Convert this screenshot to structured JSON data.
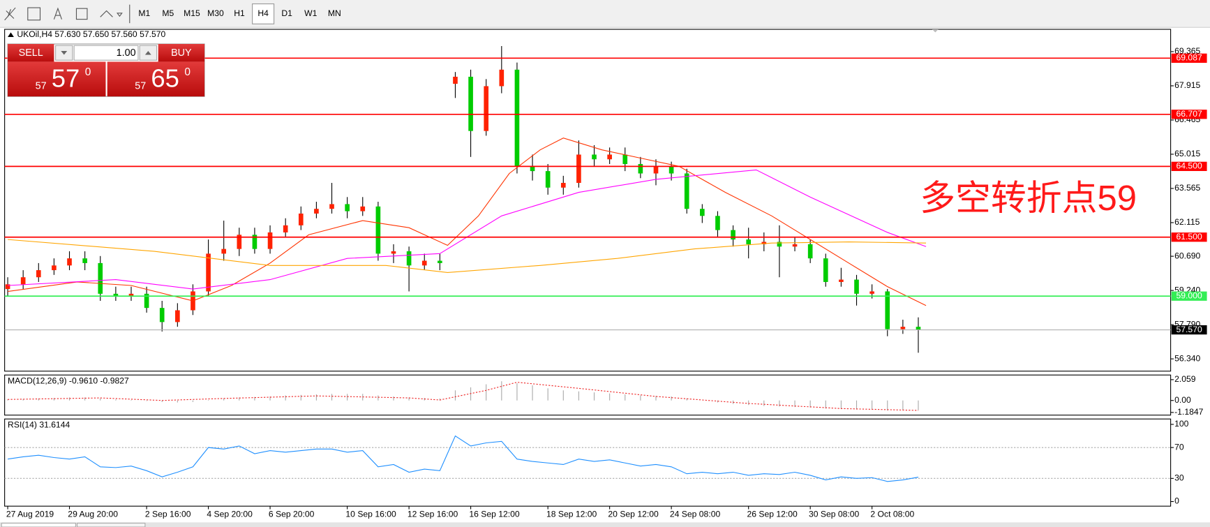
{
  "toolbar": {
    "timeframes": [
      "M1",
      "M5",
      "M15",
      "M30",
      "H1",
      "H4",
      "D1",
      "W1",
      "MN"
    ],
    "active": "H4"
  },
  "trade_panel": {
    "sell_label": "SELL",
    "buy_label": "BUY",
    "lots": "1.00",
    "sell_price": {
      "big_figure": "57",
      "pips": "57",
      "fraction": "0"
    },
    "buy_price": {
      "big_figure": "57",
      "pips": "65",
      "fraction": "0"
    }
  },
  "chart_data": [
    {
      "type": "candlestick",
      "title": "UKOil,H4 57.630 57.650 57.560 57.570",
      "annotation": "多空转折点59",
      "categories": [
        "27 Aug 2019",
        null,
        null,
        null,
        "29 Aug 20:00",
        null,
        null,
        null,
        null,
        "2 Sep 16:00",
        null,
        null,
        null,
        "4 Sep 20:00",
        null,
        null,
        null,
        "6 Sep 20:00",
        null,
        null,
        null,
        null,
        "10 Sep 16:00",
        null,
        null,
        null,
        "12 Sep 16:00",
        null,
        null,
        null,
        "16 Sep 12:00",
        null,
        null,
        null,
        null,
        "18 Sep 12:00",
        null,
        null,
        null,
        "20 Sep 12:00",
        null,
        null,
        null,
        "24 Sep 08:00",
        null,
        null,
        null,
        null,
        "26 Sep 12:00",
        null,
        null,
        null,
        "30 Sep 08:00",
        null,
        null,
        null,
        "2 Oct 08:00",
        null,
        null,
        null
      ],
      "open": [
        59.3,
        59.5,
        59.8,
        60.1,
        60.3,
        60.6,
        60.4,
        59.1,
        59.0,
        59.1,
        58.5,
        57.9,
        58.4,
        59.2,
        60.8,
        61.0,
        61.6,
        61.0,
        61.7,
        62.0,
        62.5,
        62.7,
        62.9,
        62.6,
        62.8,
        60.8,
        60.9,
        60.3,
        60.5,
        68.0,
        68.3,
        66.0,
        67.9,
        68.6,
        64.5,
        64.3,
        63.6,
        63.8,
        65.0,
        64.8,
        65.0,
        64.6,
        64.2,
        64.5,
        64.2,
        62.7,
        62.4,
        61.8,
        61.4,
        61.2,
        61.3,
        61.1,
        61.2,
        60.6,
        59.6,
        59.7,
        59.1,
        59.2,
        57.6,
        57.7
      ],
      "high": [
        59.8,
        60.1,
        60.4,
        60.6,
        60.9,
        60.9,
        60.7,
        59.4,
        59.4,
        59.4,
        58.8,
        58.7,
        59.5,
        61.4,
        62.2,
        61.9,
        61.9,
        62.0,
        62.3,
        62.8,
        63.0,
        63.8,
        63.2,
        63.2,
        63.0,
        61.2,
        61.1,
        60.8,
        60.8,
        68.5,
        68.6,
        68.2,
        69.6,
        68.9,
        65.0,
        64.6,
        64.1,
        65.6,
        65.4,
        65.3,
        65.3,
        64.9,
        64.8,
        64.7,
        64.4,
        62.9,
        62.6,
        62.0,
        61.9,
        61.7,
        62.0,
        61.5,
        61.4,
        60.8,
        60.2,
        59.9,
        59.5,
        59.3,
        58.0,
        58.1
      ],
      "low": [
        59.0,
        59.3,
        59.6,
        59.9,
        60.1,
        60.1,
        58.8,
        58.8,
        58.8,
        58.3,
        57.5,
        57.7,
        58.2,
        59.0,
        60.5,
        60.7,
        60.8,
        60.8,
        61.5,
        61.8,
        62.3,
        62.5,
        62.3,
        62.4,
        60.5,
        60.4,
        59.2,
        60.1,
        60.1,
        67.4,
        64.9,
        65.8,
        67.6,
        64.2,
        63.9,
        63.3,
        63.3,
        63.6,
        64.5,
        64.6,
        64.3,
        64.0,
        63.7,
        63.9,
        62.5,
        62.1,
        61.5,
        61.1,
        60.6,
        60.9,
        59.8,
        60.9,
        60.4,
        59.4,
        59.4,
        58.6,
        58.9,
        57.3,
        57.4,
        56.6
      ],
      "close": [
        59.5,
        59.8,
        60.1,
        60.3,
        60.6,
        60.4,
        59.1,
        59.0,
        59.1,
        58.5,
        57.9,
        58.4,
        59.2,
        60.8,
        61.0,
        61.6,
        61.0,
        61.7,
        62.0,
        62.5,
        62.7,
        62.9,
        62.6,
        62.8,
        60.8,
        60.9,
        60.3,
        60.5,
        60.4,
        68.3,
        66.0,
        67.9,
        68.6,
        64.5,
        64.3,
        63.6,
        63.8,
        65.0,
        64.8,
        65.0,
        64.6,
        64.2,
        64.5,
        64.2,
        62.7,
        62.4,
        61.8,
        61.4,
        61.2,
        61.3,
        61.1,
        61.2,
        60.6,
        59.6,
        59.7,
        59.1,
        59.2,
        57.6,
        57.7,
        57.57
      ],
      "up_color": "#ff2200",
      "down_color": "#00cc00",
      "wick_color": "#000000",
      "moving_averages": [
        {
          "color": "#ff3300",
          "x": [
            0,
            4.5,
            8,
            12,
            14.5,
            17,
            19.5,
            23,
            26,
            28.5,
            30.5,
            32.5,
            34.5,
            36,
            38.5,
            41,
            43.5,
            46.5,
            49.5,
            52,
            54.5,
            57,
            59.5
          ],
          "values": [
            59.2,
            59.6,
            59.45,
            58.8,
            59.45,
            60.4,
            61.6,
            62.2,
            61.9,
            61.15,
            62.4,
            64.2,
            65.2,
            65.7,
            65.2,
            64.85,
            64.5,
            63.4,
            62.4,
            61.4,
            60.4,
            59.4,
            58.6
          ]
        },
        {
          "color": "#ff00ff",
          "x": [
            0,
            7,
            12,
            17,
            22,
            28,
            32,
            37,
            42,
            48.5,
            52,
            57,
            59.5
          ],
          "values": [
            59.45,
            59.7,
            59.3,
            59.7,
            60.6,
            60.8,
            62.4,
            63.4,
            63.95,
            64.35,
            63.2,
            61.7,
            61.1
          ]
        },
        {
          "color": "#ffa500",
          "x": [
            0,
            9.5,
            17,
            24.5,
            28.5,
            34.5,
            39.5,
            44.5,
            49.5,
            54.5,
            59.5
          ],
          "values": [
            61.4,
            60.9,
            60.3,
            60.3,
            60.0,
            60.3,
            60.6,
            61.0,
            61.25,
            61.3,
            61.25
          ]
        }
      ],
      "levels": [
        {
          "value": 69.087,
          "color": "#ff0000"
        },
        {
          "value": 66.707,
          "color": "#ff0000"
        },
        {
          "value": 64.5,
          "label": "64.500",
          "color": "#ff0000"
        },
        {
          "value": 61.5,
          "label": "61.500",
          "color": "#ff0000"
        },
        {
          "value": 59,
          "label": "59.000",
          "color": "#33ee55"
        }
      ],
      "current_price": {
        "value": 57.57,
        "label": "57.570",
        "color": "#b0b0b0"
      },
      "ylim": [
        55.82,
        70.31
      ],
      "yticks": [
        69.365,
        67.915,
        66.465,
        65.015,
        63.565,
        62.115,
        {
          "value": 60.69,
          "label": "60.690"
        },
        {
          "value": 59.24,
          "label": "59.240"
        },
        {
          "value": 57.79,
          "label": "57.790"
        },
        {
          "value": 56.34,
          "label": "56.340"
        }
      ]
    },
    {
      "type": "macd",
      "title": "MACD(12,26,9) -0.9610 -0.9827",
      "color": "#a8a8a8",
      "values": [
        0.1,
        0.15,
        0.2,
        0.25,
        0.3,
        0.3,
        0.2,
        0.1,
        0.05,
        -0.05,
        -0.15,
        -0.2,
        -0.15,
        0.05,
        0.2,
        0.3,
        0.35,
        0.4,
        0.5,
        0.55,
        0.6,
        0.65,
        0.65,
        0.65,
        0.5,
        0.4,
        0.3,
        0.25,
        0.2,
        1.0,
        1.3,
        1.6,
        1.9,
        1.7,
        1.5,
        1.2,
        1.0,
        0.9,
        0.8,
        0.7,
        0.6,
        0.5,
        0.45,
        0.4,
        0.2,
        0.0,
        -0.2,
        -0.35,
        -0.45,
        -0.55,
        -0.6,
        -0.65,
        -0.7,
        -0.8,
        -0.85,
        -0.9,
        -0.9,
        -1.0,
        -0.98,
        -0.961
      ],
      "signal": {
        "color": "#ee2222",
        "x": [
          0,
          6,
          10,
          14,
          20,
          26,
          28,
          31,
          33,
          37,
          42,
          48,
          54,
          59
        ],
        "values": [
          0.1,
          0.25,
          0.0,
          0.2,
          0.45,
          0.25,
          0.05,
          1.0,
          1.8,
          1.2,
          0.4,
          -0.3,
          -0.8,
          -0.9827
        ]
      },
      "ylim": [
        -1.45,
        2.52
      ],
      "yticks": [
        2.059,
        {
          "value": 0,
          "label": "0.00"
        },
        -1.1847
      ]
    },
    {
      "type": "line",
      "title": "RSI(14) 31.6144",
      "color": "#1e8fff",
      "values": [
        55,
        58,
        60,
        57,
        55,
        58,
        45,
        44,
        46,
        40,
        32,
        38,
        45,
        70,
        68,
        72,
        62,
        66,
        64,
        66,
        68,
        68,
        64,
        66,
        45,
        48,
        38,
        42,
        40,
        85,
        72,
        76,
        78,
        55,
        52,
        50,
        48,
        55,
        52,
        54,
        50,
        46,
        48,
        45,
        36,
        38,
        36,
        38,
        34,
        36,
        35,
        38,
        34,
        28,
        32,
        30,
        31,
        26,
        28,
        31.6144
      ],
      "levels": [
        30,
        70
      ],
      "ylim": [
        -6,
        107
      ],
      "yticks": [
        0,
        30,
        70,
        100
      ]
    }
  ]
}
